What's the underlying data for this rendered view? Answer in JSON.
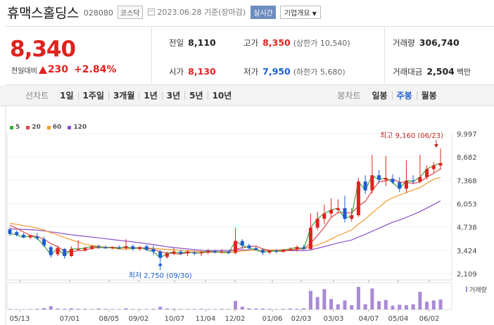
{
  "header": {
    "company": "휴맥스홀딩스",
    "code": "028080",
    "market": "코스닥",
    "date": "2023.06.28 기준(장마감)",
    "live_label": "실시간",
    "dropdown_label": "기업개요"
  },
  "summary": {
    "price": "8,340",
    "change_label": "전일대비",
    "change": "230",
    "change_pct": "+2.84%",
    "prev_close_label": "전일",
    "prev_close": "8,110",
    "high_label": "고가",
    "high": "8,350",
    "upper_limit": "(상한가 10,540)",
    "volume_label": "거래량",
    "volume": "306,740",
    "open_label": "시가",
    "open": "8,130",
    "low_label": "저가",
    "low": "7,950",
    "lower_limit": "(하한가 5,680)",
    "amount_label": "거래대금",
    "amount": "2,504",
    "amount_unit": "백만"
  },
  "toolbar": {
    "line_label": "선차트",
    "line_periods": [
      "1일",
      "1주일",
      "3개월",
      "1년",
      "3년",
      "5년",
      "10년"
    ],
    "candle_label": "봉차트",
    "candle_periods": [
      "일봉",
      "주봉",
      "월봉"
    ],
    "active_candle": "주봉"
  },
  "legend": [
    {
      "name": "5",
      "color": "#3aa83a"
    },
    {
      "name": "20",
      "color": "#e04848"
    },
    {
      "name": "60",
      "color": "#f29a2e"
    },
    {
      "name": "120",
      "color": "#8a4fc9"
    }
  ],
  "chart_data": {
    "type": "candlestick",
    "y_ticks": [
      "9,997",
      "8,682",
      "7,368",
      "6,053",
      "4,738",
      "3,424",
      "2,109"
    ],
    "y_tick_values": [
      9997,
      8682,
      7368,
      6053,
      4738,
      3424,
      2109
    ],
    "x_ticks": [
      "05/13",
      "07/01",
      "08/05",
      "09/02",
      "10/07",
      "11/04",
      "12/02",
      "01/06",
      "02/03",
      "03/03",
      "04/07",
      "05/04",
      "06/02"
    ],
    "volume_label": "거래량",
    "high_annotation": "최고 9,160 (06/23)",
    "low_annotation": "최저 2,750 (09/30)",
    "up_color": "#e0221e",
    "down_color": "#1c5cd3",
    "candles": [
      {
        "o": 4600,
        "h": 4700,
        "l": 4250,
        "c": 4350
      },
      {
        "o": 4450,
        "h": 4550,
        "l": 4200,
        "c": 4300
      },
      {
        "o": 4300,
        "h": 4400,
        "l": 4100,
        "c": 4150
      },
      {
        "o": 4150,
        "h": 4300,
        "l": 4050,
        "c": 4250
      },
      {
        "o": 4200,
        "h": 4400,
        "l": 4000,
        "c": 4100
      },
      {
        "o": 4050,
        "h": 4200,
        "l": 3600,
        "c": 3700
      },
      {
        "o": 3600,
        "h": 3700,
        "l": 3000,
        "c": 3150
      },
      {
        "o": 3200,
        "h": 3700,
        "l": 3100,
        "c": 3550
      },
      {
        "o": 3500,
        "h": 3550,
        "l": 2950,
        "c": 3100
      },
      {
        "o": 3100,
        "h": 3650,
        "l": 3050,
        "c": 3500
      },
      {
        "o": 3450,
        "h": 4000,
        "l": 3400,
        "c": 3500
      },
      {
        "o": 3450,
        "h": 3650,
        "l": 3350,
        "c": 3550
      },
      {
        "o": 3500,
        "h": 3700,
        "l": 3450,
        "c": 3650
      },
      {
        "o": 3650,
        "h": 3750,
        "l": 3500,
        "c": 3600
      },
      {
        "o": 3600,
        "h": 3700,
        "l": 3500,
        "c": 3550
      },
      {
        "o": 3550,
        "h": 3650,
        "l": 3480,
        "c": 3600
      },
      {
        "o": 3600,
        "h": 3700,
        "l": 3500,
        "c": 3520
      },
      {
        "o": 3550,
        "h": 4050,
        "l": 3450,
        "c": 3650
      },
      {
        "o": 3650,
        "h": 3750,
        "l": 3400,
        "c": 3500
      },
      {
        "o": 3500,
        "h": 3650,
        "l": 3400,
        "c": 3600
      },
      {
        "o": 3650,
        "h": 3750,
        "l": 3400,
        "c": 3450
      },
      {
        "o": 3500,
        "h": 3700,
        "l": 3150,
        "c": 3350
      },
      {
        "o": 3350,
        "h": 3450,
        "l": 2750,
        "c": 3000
      },
      {
        "o": 3050,
        "h": 3350,
        "l": 2950,
        "c": 3250
      },
      {
        "o": 3250,
        "h": 3550,
        "l": 3150,
        "c": 3350
      },
      {
        "o": 3350,
        "h": 3450,
        "l": 3150,
        "c": 3250
      },
      {
        "o": 3250,
        "h": 3450,
        "l": 3100,
        "c": 3350
      },
      {
        "o": 3300,
        "h": 3400,
        "l": 3150,
        "c": 3250
      },
      {
        "o": 3250,
        "h": 3400,
        "l": 3100,
        "c": 3300
      },
      {
        "o": 3300,
        "h": 3500,
        "l": 3200,
        "c": 3380
      },
      {
        "o": 3380,
        "h": 3450,
        "l": 3250,
        "c": 3320
      },
      {
        "o": 3320,
        "h": 3500,
        "l": 3250,
        "c": 3350
      },
      {
        "o": 3350,
        "h": 3450,
        "l": 3200,
        "c": 3280
      },
      {
        "o": 3280,
        "h": 4700,
        "l": 3200,
        "c": 3950
      },
      {
        "o": 3950,
        "h": 4050,
        "l": 3500,
        "c": 3700
      },
      {
        "o": 3700,
        "h": 3800,
        "l": 3450,
        "c": 3550
      },
      {
        "o": 3550,
        "h": 3650,
        "l": 3400,
        "c": 3450
      },
      {
        "o": 3450,
        "h": 3550,
        "l": 3150,
        "c": 3300
      },
      {
        "o": 3300,
        "h": 3450,
        "l": 3200,
        "c": 3400
      },
      {
        "o": 3400,
        "h": 3500,
        "l": 3250,
        "c": 3350
      },
      {
        "o": 3350,
        "h": 3500,
        "l": 3300,
        "c": 3450
      },
      {
        "o": 3450,
        "h": 3600,
        "l": 3400,
        "c": 3500
      },
      {
        "o": 3500,
        "h": 3700,
        "l": 3350,
        "c": 3600
      },
      {
        "o": 3600,
        "h": 3750,
        "l": 3450,
        "c": 3500
      },
      {
        "o": 3500,
        "h": 5500,
        "l": 3450,
        "c": 4700
      },
      {
        "o": 4700,
        "h": 5600,
        "l": 4550,
        "c": 5200
      },
      {
        "o": 5200,
        "h": 6000,
        "l": 4900,
        "c": 5500
      },
      {
        "o": 5500,
        "h": 6350,
        "l": 5300,
        "c": 5700
      },
      {
        "o": 5700,
        "h": 6300,
        "l": 5500,
        "c": 5800
      },
      {
        "o": 5800,
        "h": 6500,
        "l": 5000,
        "c": 5200
      },
      {
        "o": 5200,
        "h": 5800,
        "l": 5050,
        "c": 5400
      },
      {
        "o": 5400,
        "h": 7500,
        "l": 5300,
        "c": 7300
      },
      {
        "o": 7300,
        "h": 7650,
        "l": 6600,
        "c": 6800
      },
      {
        "o": 6800,
        "h": 8800,
        "l": 6600,
        "c": 7650
      },
      {
        "o": 7650,
        "h": 7950,
        "l": 7200,
        "c": 7400
      },
      {
        "o": 7400,
        "h": 8750,
        "l": 7050,
        "c": 7500
      },
      {
        "o": 7450,
        "h": 7700,
        "l": 7150,
        "c": 7250
      },
      {
        "o": 7250,
        "h": 7550,
        "l": 6700,
        "c": 6900
      },
      {
        "o": 6900,
        "h": 8500,
        "l": 6650,
        "c": 7350
      },
      {
        "o": 7350,
        "h": 7650,
        "l": 7150,
        "c": 7300
      },
      {
        "o": 7300,
        "h": 8800,
        "l": 7200,
        "c": 7550
      },
      {
        "o": 7550,
        "h": 8200,
        "l": 7400,
        "c": 8000
      },
      {
        "o": 8000,
        "h": 8400,
        "l": 7800,
        "c": 8200
      },
      {
        "o": 8200,
        "h": 9160,
        "l": 7950,
        "c": 8340
      }
    ],
    "volume_index": [
      0.02,
      0.02,
      0.01,
      0.02,
      0.03,
      0.06,
      0.14,
      0.04,
      0.03,
      0.05,
      0.03,
      0.03,
      0.02,
      0.04,
      0.03,
      0.02,
      0.02,
      0.05,
      0.02,
      0.02,
      0.02,
      0.03,
      0.11,
      0.04,
      0.03,
      0.02,
      0.02,
      0.02,
      0.03,
      0.02,
      0.02,
      0.03,
      0.02,
      0.36,
      0.12,
      0.05,
      0.04,
      0.04,
      0.03,
      0.02,
      0.03,
      0.04,
      0.03,
      0.05,
      0.78,
      0.52,
      0.85,
      0.44,
      0.22,
      0.38,
      0.18,
      0.95,
      0.22,
      0.88,
      0.35,
      0.4,
      0.16,
      0.2,
      0.18,
      0.22,
      0.74,
      0.33,
      0.38,
      0.42
    ]
  }
}
